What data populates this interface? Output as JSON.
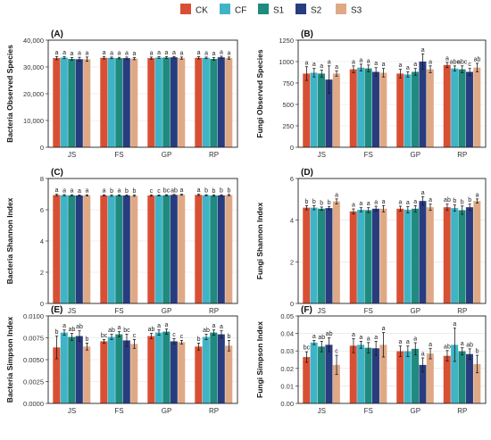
{
  "legend": {
    "items": [
      {
        "label": "CK",
        "color": "#d94f33"
      },
      {
        "label": "CF",
        "color": "#3fb4c7"
      },
      {
        "label": "S1",
        "color": "#1f8a7e"
      },
      {
        "label": "S2",
        "color": "#283c80"
      },
      {
        "label": "S3",
        "color": "#e0a986"
      }
    ]
  },
  "chart_data": [
    {
      "type": "bar",
      "panel_label": "(A)",
      "ylabel": "Bacteria Observed Species",
      "categories": [
        "JS",
        "FS",
        "GP",
        "RP"
      ],
      "ylim": [
        0,
        40000
      ],
      "yticks": [
        0,
        10000,
        20000,
        30000,
        40000
      ],
      "ytick_labels": [
        "0",
        "10,000",
        "20,000",
        "30,000",
        "40,000"
      ],
      "series": [
        {
          "values": [
            33300,
            33400,
            33300,
            33400
          ],
          "errors": [
            600,
            400,
            400,
            400
          ],
          "letters": [
            "a",
            "a",
            "a",
            "a"
          ]
        },
        {
          "values": [
            33500,
            33400,
            33500,
            33400
          ],
          "errors": [
            400,
            300,
            300,
            300
          ],
          "letters": [
            "a",
            "a",
            "a",
            "a"
          ]
        },
        {
          "values": [
            33000,
            33300,
            33500,
            33000
          ],
          "errors": [
            500,
            300,
            300,
            500
          ],
          "letters": [
            "a",
            "a",
            "a",
            "a"
          ]
        },
        {
          "values": [
            32900,
            33300,
            33600,
            33600
          ],
          "errors": [
            700,
            400,
            300,
            400
          ],
          "letters": [
            "a",
            "a",
            "a",
            "a"
          ]
        },
        {
          "values": [
            32900,
            33100,
            33300,
            33300
          ],
          "errors": [
            800,
            400,
            400,
            400
          ],
          "letters": [
            "a",
            "a",
            "a",
            "a"
          ]
        }
      ]
    },
    {
      "type": "bar",
      "panel_label": "(B)",
      "ylabel": "Fungi Observed Species",
      "categories": [
        "JS",
        "FS",
        "GP",
        "RP"
      ],
      "ylim": [
        0,
        1250
      ],
      "yticks": [
        0,
        250,
        500,
        750,
        1000,
        1250
      ],
      "ytick_labels": [
        "0",
        "250",
        "500",
        "750",
        "1000",
        "1250"
      ],
      "series": [
        {
          "values": [
            860,
            910,
            860,
            960
          ],
          "errors": [
            80,
            40,
            50,
            30
          ],
          "letters": [
            "a",
            "a",
            "a",
            "a"
          ]
        },
        {
          "values": [
            870,
            930,
            850,
            920
          ],
          "errors": [
            50,
            40,
            30,
            30
          ],
          "letters": [
            "a",
            "a",
            "a",
            "abc"
          ]
        },
        {
          "values": [
            860,
            920,
            880,
            910
          ],
          "errors": [
            40,
            40,
            40,
            40
          ],
          "letters": [
            "a",
            "a",
            "a",
            "abc"
          ]
        },
        {
          "values": [
            790,
            880,
            1000,
            880
          ],
          "errors": [
            160,
            50,
            90,
            40
          ],
          "letters": [
            "a",
            "a",
            "a",
            "c"
          ]
        },
        {
          "values": [
            860,
            870,
            910,
            930
          ],
          "errors": [
            30,
            50,
            40,
            50
          ],
          "letters": [
            "a",
            "a",
            "a",
            "ab"
          ]
        }
      ]
    },
    {
      "type": "bar",
      "panel_label": "(C)",
      "ylabel": "Bacteria Shannon Index",
      "categories": [
        "JS",
        "FS",
        "GP",
        "RP"
      ],
      "ylim": [
        0,
        8
      ],
      "yticks": [
        0,
        2,
        4,
        6,
        8
      ],
      "ytick_labels": [
        "0",
        "2",
        "4",
        "6",
        "8"
      ],
      "series": [
        {
          "values": [
            6.94,
            6.92,
            6.91,
            6.95
          ],
          "errors": [
            0.05,
            0.04,
            0.04,
            0.04
          ],
          "letters": [
            "a",
            "a",
            "c",
            "a"
          ]
        },
        {
          "values": [
            6.93,
            6.9,
            6.92,
            6.93
          ],
          "errors": [
            0.04,
            0.04,
            0.03,
            0.03
          ],
          "letters": [
            "a",
            "b",
            "c",
            "b"
          ]
        },
        {
          "values": [
            6.92,
            6.92,
            6.93,
            6.91
          ],
          "errors": [
            0.04,
            0.04,
            0.03,
            0.04
          ],
          "letters": [
            "a",
            "a",
            "bc",
            "b"
          ]
        },
        {
          "values": [
            6.91,
            6.91,
            6.95,
            6.92
          ],
          "errors": [
            0.04,
            0.04,
            0.03,
            0.04
          ],
          "letters": [
            "a",
            "b",
            "ab",
            "b"
          ]
        },
        {
          "values": [
            6.92,
            6.9,
            6.96,
            6.94
          ],
          "errors": [
            0.04,
            0.04,
            0.03,
            0.04
          ],
          "letters": [
            "a",
            "b",
            "a",
            "b"
          ]
        }
      ]
    },
    {
      "type": "bar",
      "panel_label": "(D)",
      "ylabel": "Fungi Shannon Index",
      "categories": [
        "JS",
        "FS",
        "GP",
        "RP"
      ],
      "ylim": [
        0,
        6
      ],
      "yticks": [
        0,
        2,
        4,
        6
      ],
      "ytick_labels": [
        "0",
        "2",
        "4",
        "6"
      ],
      "series": [
        {
          "values": [
            4.6,
            4.42,
            4.55,
            4.62
          ],
          "errors": [
            0.1,
            0.12,
            0.12,
            0.15
          ],
          "letters": [
            "b",
            "a",
            "a",
            "ab"
          ]
        },
        {
          "values": [
            4.6,
            4.5,
            4.5,
            4.58
          ],
          "errors": [
            0.1,
            0.1,
            0.15,
            0.15
          ],
          "letters": [
            "b",
            "a",
            "a",
            "b"
          ]
        },
        {
          "values": [
            4.55,
            4.48,
            4.55,
            4.48
          ],
          "errors": [
            0.08,
            0.12,
            0.15,
            0.2
          ],
          "letters": [
            "b",
            "a",
            "a",
            "b"
          ]
        },
        {
          "values": [
            4.58,
            4.55,
            4.92,
            4.62
          ],
          "errors": [
            0.08,
            0.12,
            0.2,
            0.15
          ],
          "letters": [
            "b",
            "a",
            "a",
            "b"
          ]
        },
        {
          "values": [
            4.9,
            4.55,
            4.62,
            4.92
          ],
          "errors": [
            0.12,
            0.15,
            0.15,
            0.1
          ],
          "letters": [
            "a",
            "a",
            "a",
            "a"
          ]
        }
      ]
    },
    {
      "type": "bar",
      "panel_label": "(E)",
      "ylabel": "Bacteria Simpson Index",
      "categories": [
        "JS",
        "FS",
        "GP",
        "RP"
      ],
      "ylim": [
        0,
        0.01
      ],
      "yticks": [
        0,
        0.0025,
        0.005,
        0.0075,
        0.01
      ],
      "ytick_labels": [
        "0.0000",
        "0.0025",
        "0.0050",
        "0.0075",
        "0.0100"
      ],
      "series": [
        {
          "values": [
            0.0064,
            0.0071,
            0.0077,
            0.0065
          ],
          "errors": [
            0.0013,
            0.0002,
            0.0003,
            0.0004
          ],
          "letters": [
            "b",
            "bc",
            "ab",
            "b"
          ]
        },
        {
          "values": [
            0.0081,
            0.0076,
            0.0081,
            0.0076
          ],
          "errors": [
            0.0003,
            0.0003,
            0.0003,
            0.0003
          ],
          "letters": [
            "a",
            "ab",
            "a",
            "ab"
          ]
        },
        {
          "values": [
            0.0076,
            0.0079,
            0.0082,
            0.0081
          ],
          "errors": [
            0.0004,
            0.0003,
            0.0003,
            0.0003
          ],
          "letters": [
            "ab",
            "a",
            "a",
            "a"
          ]
        },
        {
          "values": [
            0.0077,
            0.0072,
            0.0071,
            0.0079
          ],
          "errors": [
            0.0006,
            0.0007,
            0.0003,
            0.0004
          ],
          "letters": [
            "ab",
            "bc",
            "c",
            "a"
          ]
        },
        {
          "values": [
            0.0065,
            0.0068,
            0.007,
            0.0066
          ],
          "errors": [
            0.0004,
            0.0005,
            0.0002,
            0.0006
          ],
          "letters": [
            "b",
            "c",
            "c",
            "b"
          ]
        }
      ]
    },
    {
      "type": "bar",
      "panel_label": "(F)",
      "ylabel": "Fungi Simpson Index",
      "categories": [
        "JS",
        "FS",
        "GP",
        "RP"
      ],
      "ylim": [
        0,
        0.05
      ],
      "yticks": [
        0,
        0.01,
        0.02,
        0.03,
        0.04,
        0.05
      ],
      "ytick_labels": [
        "0.00",
        "0.01",
        "0.02",
        "0.03",
        "0.04",
        "0.05"
      ],
      "series": [
        {
          "values": [
            0.0265,
            0.033,
            0.0298,
            0.0272
          ],
          "errors": [
            0.003,
            0.004,
            0.003,
            0.003
          ],
          "letters": [
            "bc",
            "a",
            "a",
            "ab"
          ]
        },
        {
          "values": [
            0.0348,
            0.0335,
            0.0298,
            0.0335
          ],
          "errors": [
            0.0012,
            0.002,
            0.003,
            0.0095
          ],
          "letters": [
            "a",
            "a",
            "a",
            "a"
          ]
        },
        {
          "values": [
            0.0325,
            0.0318,
            0.0312,
            0.0298
          ],
          "errors": [
            0.003,
            0.003,
            0.0035,
            0.002
          ],
          "letters": [
            "ab",
            "a",
            "a",
            "a"
          ]
        },
        {
          "values": [
            0.0335,
            0.0315,
            0.022,
            0.0282
          ],
          "errors": [
            0.004,
            0.004,
            0.004,
            0.003
          ],
          "letters": [
            "ab",
            "a",
            "a",
            "ab"
          ]
        },
        {
          "values": [
            0.022,
            0.0335,
            0.0285,
            0.0225
          ],
          "errors": [
            0.0055,
            0.007,
            0.003,
            0.005
          ],
          "letters": [
            "c",
            "a",
            "a",
            "b"
          ]
        }
      ]
    }
  ]
}
